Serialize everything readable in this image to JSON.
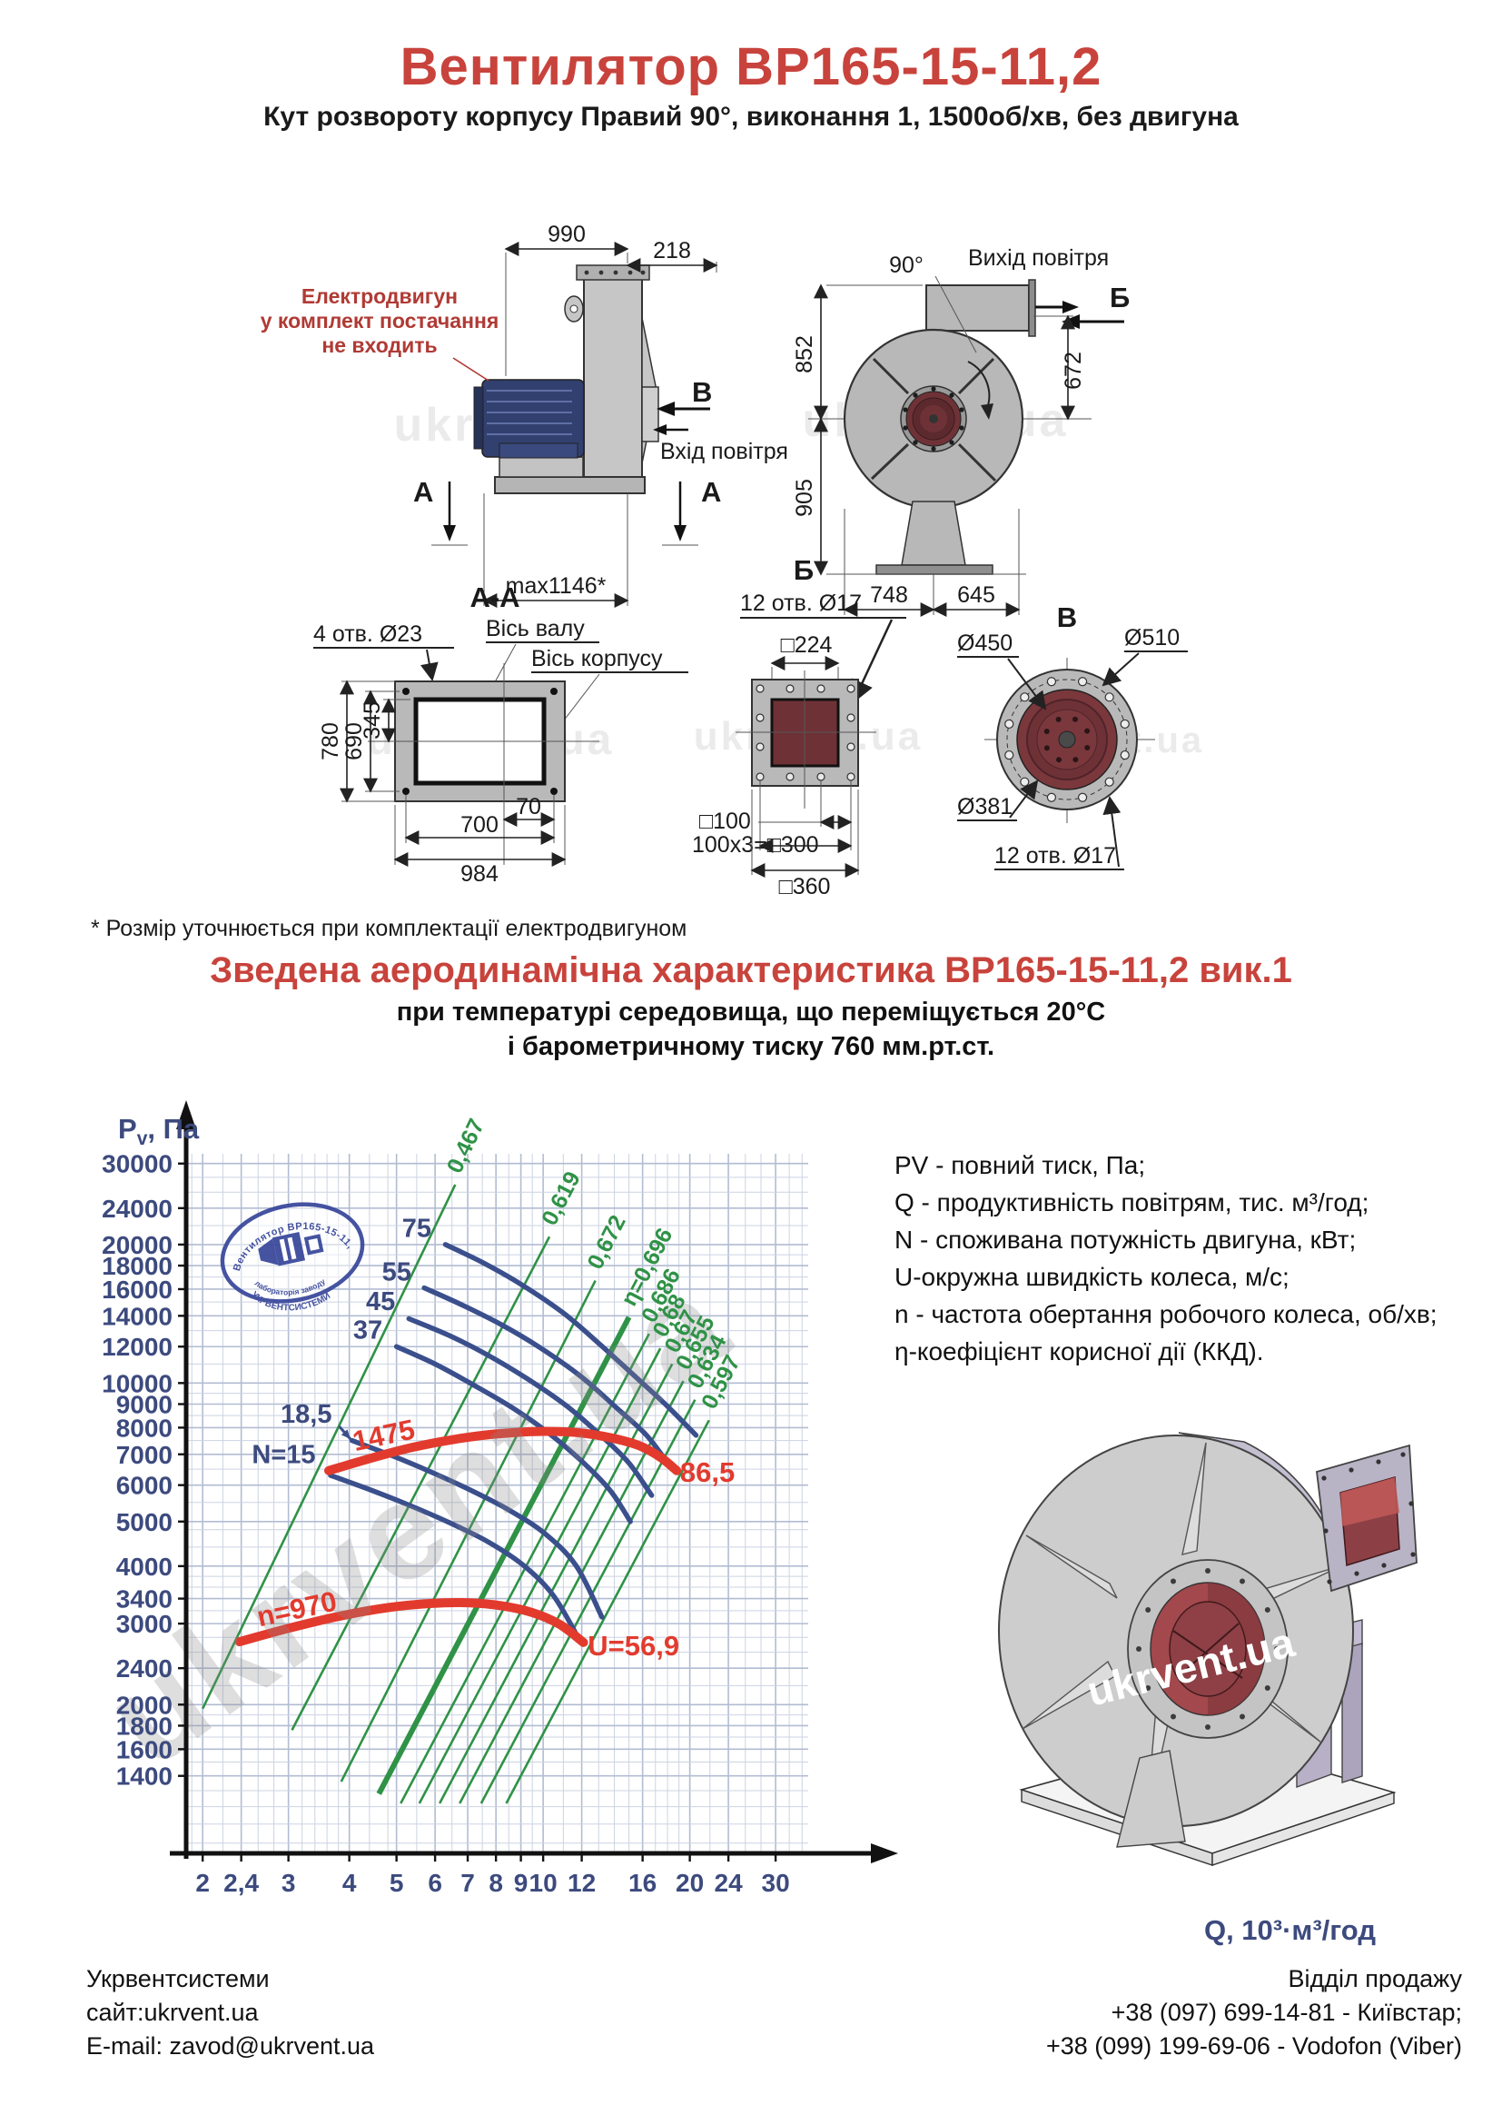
{
  "colors": {
    "title_red": "#c8433c",
    "accent_red": "#e23b2e",
    "curve_blue": "#3a4f8c",
    "eff_green": "#2f9246",
    "axis_navy": "#3c4a7e",
    "drawing_gray": "#b9b9b9",
    "flange_dark_red": "#6e3236"
  },
  "header": {
    "title": "Вентилятор ВР165-15-11,2",
    "subtitle": "Кут розвороту корпусу Правий 90°, виконання 1, 1500об/хв, без двигуна"
  },
  "watermark": "ukrvent.ua",
  "drawings": {
    "side_view": {
      "motor_note": [
        "Електродвигун",
        "у комплект постачання",
        "не входить"
      ],
      "dim_width_top": "990",
      "dim_flange_depth": "218",
      "dim_max_length": "max1146*",
      "view_label_v": "В",
      "air_inlet": "Вхід повітря",
      "section_label_a": "А"
    },
    "front_view": {
      "angle_label": "90°",
      "air_outlet": "Вихід повітря",
      "view_label_b": "Б",
      "dim_852": "852",
      "dim_905": "905",
      "dim_672": "672",
      "dim_748": "748",
      "dim_645": "645"
    },
    "section_aa": {
      "title": "А-А",
      "holes_label": "4 отв. Ø23",
      "shaft_axis": "Вісь валу",
      "body_axis": "Вісь корпусу",
      "dim_780": "780",
      "dim_690": "690",
      "dim_345": "345",
      "dim_70": "70",
      "dim_700": "700",
      "dim_984": "984"
    },
    "flange_b": {
      "title": "Б",
      "holes_label": "12 отв. Ø17",
      "dim_224": "□224",
      "dim_100": "□100",
      "dim_300": "100x3=□300",
      "dim_360": "□360"
    },
    "flange_v": {
      "title": "В",
      "dim_450": "Ø450",
      "dim_510": "Ø510",
      "dim_381": "Ø381",
      "holes_label": "12 отв. Ø17"
    },
    "footnote": "* Розмір уточнюється при комплектації електродвигуном"
  },
  "chart_section": {
    "heading": "Зведена аеродинамічна характеристика ВР165-15-11,2 вик.1",
    "condition_line1": "при температурі середовища, що переміщується 20°С",
    "condition_line2": "і барометричному тиску 760 мм.рт.ст.",
    "legend": [
      "PV - повний тиск, Па;",
      "Q - продуктивність повітрям, тис. м³/год;",
      "N - споживана потужність двигуна, кВт;",
      "U-окружна швидкість колеса, м/с;",
      "n - частота обертання робочого колеса, об/хв;",
      "η-коефіцієнт корисної дії (ККД)."
    ],
    "stamp": {
      "arc_top": "Вентилятор ВР165-15-11,2",
      "arc_bottom1": "лабораторія заводу",
      "arc_bottom2": "УКРВЕНТСИСТЕМИ"
    }
  },
  "chart_data": {
    "type": "line",
    "title": "Зведена аеродинамічна характеристика ВР165-15-11,2 вик.1",
    "xlabel": "Q, 10³·м³/год",
    "ylabel": "Pv, Па",
    "ylabel_parts": {
      "main": "P",
      "sub": "v",
      "rest": ", Па"
    },
    "x_scale": "log",
    "y_scale": "log",
    "xlim": [
      1.85,
      35
    ],
    "ylim": [
      950,
      31500
    ],
    "grid": true,
    "x_ticks": [
      {
        "v": 2,
        "label": "2"
      },
      {
        "v": 2.4,
        "label": "2,4"
      },
      {
        "v": 3,
        "label": "3"
      },
      {
        "v": 4,
        "label": "4"
      },
      {
        "v": 5,
        "label": "5"
      },
      {
        "v": 6,
        "label": "6"
      },
      {
        "v": 7,
        "label": "7"
      },
      {
        "v": 8,
        "label": "8"
      },
      {
        "v": 9,
        "label": "9"
      },
      {
        "v": 10,
        "label": "10"
      },
      {
        "v": 12,
        "label": "12"
      },
      {
        "v": 16,
        "label": "16"
      },
      {
        "v": 20,
        "label": "20"
      },
      {
        "v": 24,
        "label": "24"
      },
      {
        "v": 30,
        "label": "30"
      }
    ],
    "y_ticks": [
      30000,
      24000,
      20000,
      18000,
      16000,
      14000,
      12000,
      10000,
      9000,
      8000,
      7000,
      6000,
      5000,
      4000,
      3400,
      3000,
      2400,
      2000,
      1800,
      1600,
      1400
    ],
    "power_curves": [
      {
        "label": "75",
        "label_at": [
          6.05,
          20800
        ],
        "points": [
          [
            6.3,
            20000
          ],
          [
            7.5,
            18300
          ],
          [
            9,
            16400
          ],
          [
            11,
            14200
          ],
          [
            13,
            12200
          ],
          [
            15.5,
            10300
          ],
          [
            18,
            8900
          ],
          [
            20.6,
            7700
          ]
        ]
      },
      {
        "label": "55",
        "label_at": [
          5.5,
          16700
        ],
        "points": [
          [
            5.7,
            16100
          ],
          [
            6.8,
            14800
          ],
          [
            8.2,
            13400
          ],
          [
            9.9,
            11900
          ],
          [
            12,
            10300
          ],
          [
            14.2,
            8800
          ],
          [
            16.3,
            7700
          ],
          [
            18.2,
            6600
          ]
        ]
      },
      {
        "label": "45",
        "label_at": [
          5.1,
          14400
        ],
        "points": [
          [
            5.3,
            13800
          ],
          [
            6.4,
            12700
          ],
          [
            7.7,
            11500
          ],
          [
            9.3,
            10200
          ],
          [
            11.2,
            8900
          ],
          [
            13.3,
            7600
          ],
          [
            15,
            6700
          ],
          [
            16.7,
            5700
          ]
        ]
      },
      {
        "label": "37",
        "label_at": [
          4.8,
          12500
        ],
        "points": [
          [
            5.0,
            12000
          ],
          [
            6.0,
            11000
          ],
          [
            7.2,
            9900
          ],
          [
            8.7,
            8800
          ],
          [
            10.4,
            7700
          ],
          [
            12.3,
            6600
          ],
          [
            13.8,
            5800
          ],
          [
            15.1,
            5000
          ]
        ]
      },
      {
        "label": "18,5",
        "label_at": [
          3.78,
          8200
        ],
        "arrow_to": [
          4.02,
          7560
        ],
        "points": [
          [
            4.05,
            7500
          ],
          [
            4.9,
            6950
          ],
          [
            5.9,
            6400
          ],
          [
            7.1,
            5850
          ],
          [
            8.5,
            5300
          ],
          [
            10.1,
            4700
          ],
          [
            11.7,
            4000
          ],
          [
            13.2,
            3100
          ]
        ]
      },
      {
        "label": "N=15",
        "label_at": [
          3.5,
          6700
        ],
        "points": [
          [
            3.66,
            6300
          ],
          [
            4.4,
            5870
          ],
          [
            5.3,
            5430
          ],
          [
            6.4,
            4980
          ],
          [
            7.7,
            4520
          ],
          [
            9.1,
            4020
          ],
          [
            10.5,
            3450
          ],
          [
            11.9,
            2750
          ]
        ]
      }
    ],
    "speed_curves": [
      {
        "label": "1475",
        "label_at": [
          4.75,
          7350
        ],
        "label_rot": -12,
        "end_label": "86,5",
        "end_label_at": [
          19.1,
          6380
        ],
        "points": [
          [
            3.63,
            6450
          ],
          [
            4.4,
            6850
          ],
          [
            5.4,
            7250
          ],
          [
            6.6,
            7550
          ],
          [
            8,
            7750
          ],
          [
            9.8,
            7850
          ],
          [
            11.8,
            7800
          ],
          [
            13.8,
            7600
          ],
          [
            15.8,
            7300
          ],
          [
            17.4,
            6900
          ],
          [
            18.8,
            6450
          ]
        ]
      },
      {
        "label": "n=970",
        "label_at": [
          3.15,
          3080
        ],
        "label_rot": -12,
        "end_label": "U=56,9",
        "end_label_at": [
          12.35,
          2680
        ],
        "points": [
          [
            2.38,
            2740
          ],
          [
            3.0,
            2930
          ],
          [
            3.8,
            3110
          ],
          [
            4.8,
            3250
          ],
          [
            5.9,
            3320
          ],
          [
            7.0,
            3330
          ],
          [
            8.2,
            3280
          ],
          [
            9.5,
            3170
          ],
          [
            10.8,
            2990
          ],
          [
            12.1,
            2730
          ]
        ]
      }
    ],
    "efficiency_lines": [
      {
        "label": "0,467",
        "from": [
          2.0,
          1960
        ],
        "to": [
          6.6,
          27000
        ]
      },
      {
        "label": "0,619",
        "from": [
          3.05,
          1760
        ],
        "to": [
          10.3,
          20800
        ]
      },
      {
        "label": "0,672",
        "from": [
          3.85,
          1360
        ],
        "to": [
          12.8,
          16700
        ]
      },
      {
        "label": "η=0,696",
        "thick": true,
        "from": [
          4.6,
          1280
        ],
        "to": [
          15.0,
          13900
        ]
      },
      {
        "label": "0,686",
        "from": [
          5.1,
          1220
        ],
        "to": [
          16.5,
          12800
        ]
      },
      {
        "label": "0,68",
        "from": [
          5.57,
          1220
        ],
        "to": [
          17.4,
          11900
        ]
      },
      {
        "label": "0,67",
        "from": [
          6.13,
          1220
        ],
        "to": [
          18.4,
          11000
        ]
      },
      {
        "label": "0,655",
        "from": [
          6.74,
          1220
        ],
        "to": [
          19.4,
          10100
        ]
      },
      {
        "label": "0,634",
        "from": [
          7.46,
          1220
        ],
        "to": [
          20.5,
          9200
        ]
      },
      {
        "label": "0,597",
        "from": [
          8.4,
          1220
        ],
        "to": [
          21.9,
          8300
        ]
      }
    ]
  },
  "footer": {
    "left": [
      "Укрвентсистеми",
      "сайт:ukrvent.ua",
      "E-mail: zavod@ukrvent.ua"
    ],
    "right": [
      "Відділ продажу",
      "+38 (097) 699-14-81 - Київстар;",
      "+38 (099) 199-69-06 - Vodofon (Viber)"
    ]
  }
}
